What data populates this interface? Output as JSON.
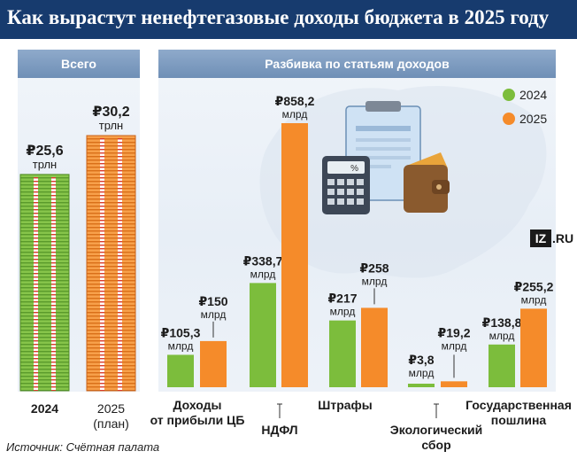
{
  "title": "Как вырастут ненефтегазовые доходы бюджета в 2025 году",
  "brand": "IZ.RU",
  "source": "Источник: Счётная палата",
  "colors": {
    "header_bg": "#173b6e",
    "y2024": "#7cbd3c",
    "y2025": "#f58b2a",
    "panel_head": "#7d9cc2"
  },
  "legend": {
    "y2024": "2024",
    "y2025": "2025"
  },
  "icons": [
    "clipboard-icon",
    "calculator-icon",
    "wallet-icon",
    "russia-map-silhouette"
  ],
  "chart_data": [
    {
      "type": "bar",
      "title": "Всего",
      "categories": [
        "2024",
        "2025\n(план)"
      ],
      "values": [
        25.6,
        30.2
      ],
      "value_labels": [
        "₽25,6",
        "₽30,2"
      ],
      "unit": "трлн"
    },
    {
      "type": "bar",
      "title": "Разбивка по статьям доходов",
      "unit": "млрд",
      "categories": [
        "Доходы\nот прибыли ЦБ",
        "НДФЛ",
        "Штрафы",
        "Экологический\nсбор",
        "Государственная\nпошлина"
      ],
      "series": [
        {
          "name": "2024",
          "values": [
            105.3,
            338.7,
            217,
            3.8,
            138.8
          ],
          "value_labels": [
            "₽105,3",
            "₽338,7",
            "₽217",
            "₽3,8",
            "₽138,8"
          ]
        },
        {
          "name": "2025",
          "values": [
            150,
            858.2,
            258,
            19.2,
            255.2
          ],
          "value_labels": [
            "₽150",
            "₽858,2",
            "₽258",
            "₽19,2",
            "₽255,2"
          ]
        }
      ]
    }
  ]
}
